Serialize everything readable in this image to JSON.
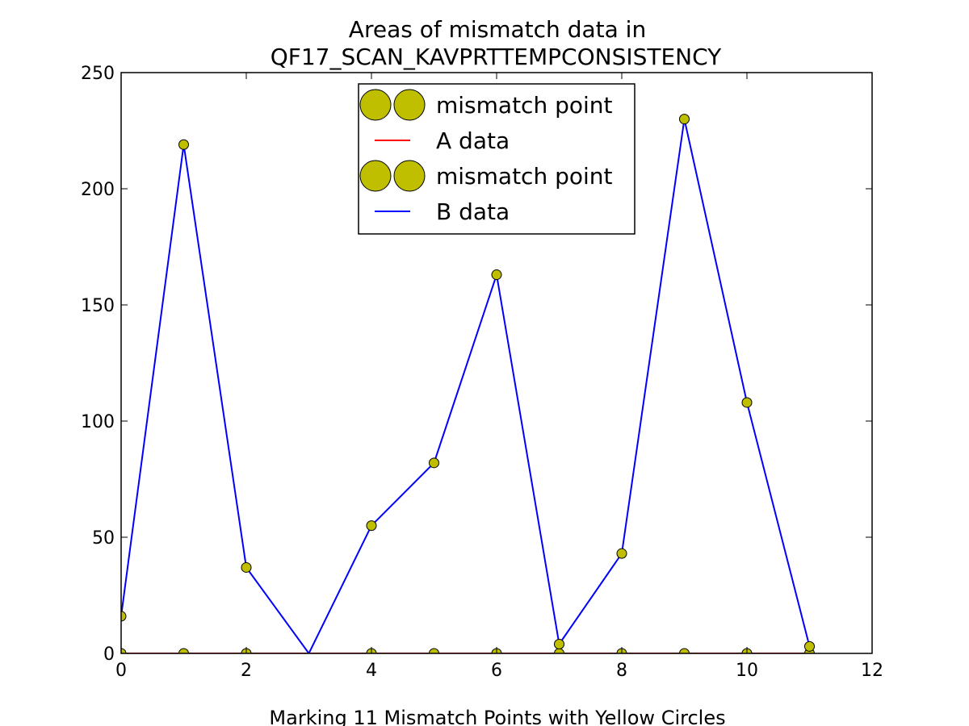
{
  "chart_data": {
    "type": "line",
    "title_line1": "Areas of mismatch data in",
    "title_line2": "QF17_SCAN_KAVPRTTEMPCONSISTENCY",
    "xlabel": "Marking 11 Mismatch Points with Yellow Circles",
    "ylabel": "",
    "xlim": [
      0,
      12
    ],
    "ylim": [
      0,
      250
    ],
    "x_ticks": [
      "0",
      "2",
      "4",
      "6",
      "8",
      "10",
      "12"
    ],
    "y_ticks": [
      "0",
      "50",
      "100",
      "150",
      "200",
      "250"
    ],
    "grid": false,
    "legend_position": "top-center",
    "legend": [
      {
        "label": "mismatch point",
        "kind": "marker"
      },
      {
        "label": "A data",
        "kind": "line"
      },
      {
        "label": "mismatch point",
        "kind": "marker"
      },
      {
        "label": "B data",
        "kind": "line"
      }
    ],
    "series": [
      {
        "name": "A data",
        "color": "#ff0000",
        "x": [
          0,
          1,
          2,
          3,
          4,
          5,
          6,
          7,
          8,
          9,
          10,
          11
        ],
        "values": [
          0,
          0,
          0,
          0,
          0,
          0,
          0,
          0,
          0,
          0,
          0,
          0
        ]
      },
      {
        "name": "B data",
        "color": "#0000ff",
        "x": [
          0,
          1,
          2,
          3,
          4,
          5,
          6,
          7,
          8,
          9,
          10,
          11
        ],
        "values": [
          16,
          219,
          37,
          0,
          55,
          82,
          163,
          4,
          43,
          230,
          108,
          3
        ]
      }
    ],
    "mismatch_points": {
      "color": "#bfbf00",
      "x": [
        0,
        1,
        2,
        4,
        5,
        6,
        7,
        8,
        9,
        10,
        11,
        0,
        1,
        2,
        4,
        5,
        6,
        7,
        8,
        9,
        10,
        11
      ],
      "y": [
        0,
        0,
        0,
        0,
        0,
        0,
        0,
        0,
        0,
        0,
        0,
        16,
        219,
        37,
        55,
        82,
        163,
        4,
        43,
        230,
        108,
        3
      ]
    }
  }
}
